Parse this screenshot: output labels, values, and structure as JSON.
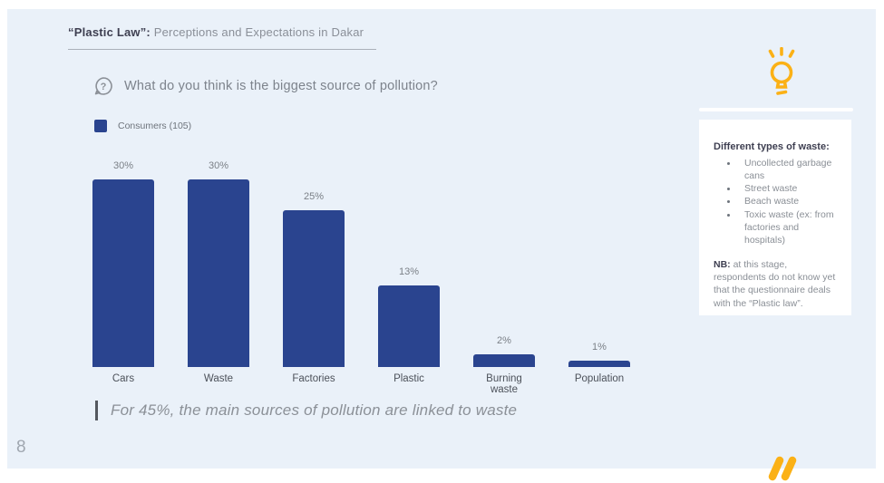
{
  "slide": {
    "title": {
      "bold": "“Plastic Law”:",
      "rest": " Perceptions and Expectations in Dakar"
    },
    "question": "What do you think is the biggest source of pollution?",
    "legend_label": "Consumers (105)",
    "quote": "For 45%, the main sources of pollution are linked to waste",
    "page_number": "8"
  },
  "chart_data": {
    "type": "bar",
    "title": "What do you think is the biggest source of pollution?",
    "series_name": "Consumers (105)",
    "categories": [
      "Cars",
      "Waste",
      "Factories",
      "Plastic",
      "Burning waste",
      "Population"
    ],
    "values": [
      30,
      30,
      25,
      13,
      2,
      1
    ],
    "value_labels": [
      "30%",
      "30%",
      "25%",
      "13%",
      "2%",
      "1%"
    ],
    "xlabel": "",
    "ylabel": "",
    "ylim": [
      0,
      30
    ],
    "grid": false,
    "legend_position": "top-left",
    "bar_color": "#2A448F"
  },
  "sidebar": {
    "icon": "idea-lightbulb",
    "card": {
      "heading": "Different types of waste:",
      "bullets": [
        "Uncollected garbage cans",
        "Street waste",
        "Beach waste",
        "Toxic waste (ex: from factories and hospitals)"
      ],
      "nb_bold": "NB:",
      "nb_text": " at this stage, respondents do not know yet that the questionnaire deals with the “Plastic law”."
    }
  },
  "colors": {
    "slide_background": "#EAF1F9",
    "bar_blue": "#2A448F",
    "accent_yellow": "#FBB116",
    "text_dark": "#3E3F51",
    "text_gray": "#8A8F96"
  }
}
